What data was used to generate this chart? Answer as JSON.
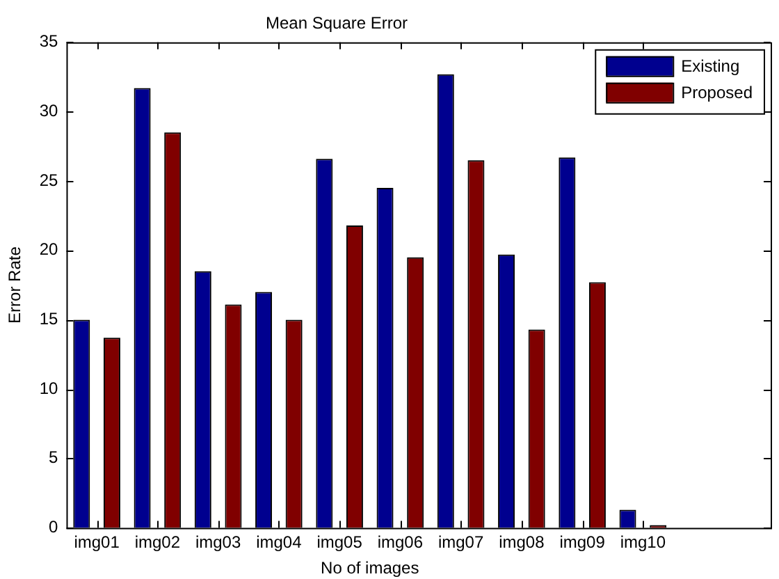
{
  "chart_data": {
    "type": "bar",
    "title": "Mean Square Error",
    "xlabel": "No of images",
    "ylabel": "Error Rate",
    "categories": [
      "img01",
      "img02",
      "img03",
      "img04",
      "img05",
      "img06",
      "img07",
      "img08",
      "img09",
      "img10"
    ],
    "series": [
      {
        "name": "Existing",
        "color": "#00008f",
        "values": [
          15.0,
          31.7,
          18.5,
          17.0,
          26.6,
          24.5,
          32.7,
          19.7,
          26.7,
          1.3
        ]
      },
      {
        "name": "Proposed",
        "color": "#800000",
        "values": [
          13.7,
          28.5,
          16.1,
          15.0,
          21.8,
          19.5,
          26.5,
          14.3,
          17.7,
          0.2
        ]
      }
    ],
    "ylim": [
      0,
      35
    ],
    "yticks": [
      0,
      5,
      10,
      15,
      20,
      25,
      30,
      35
    ],
    "grid": false,
    "legend": "top right"
  }
}
